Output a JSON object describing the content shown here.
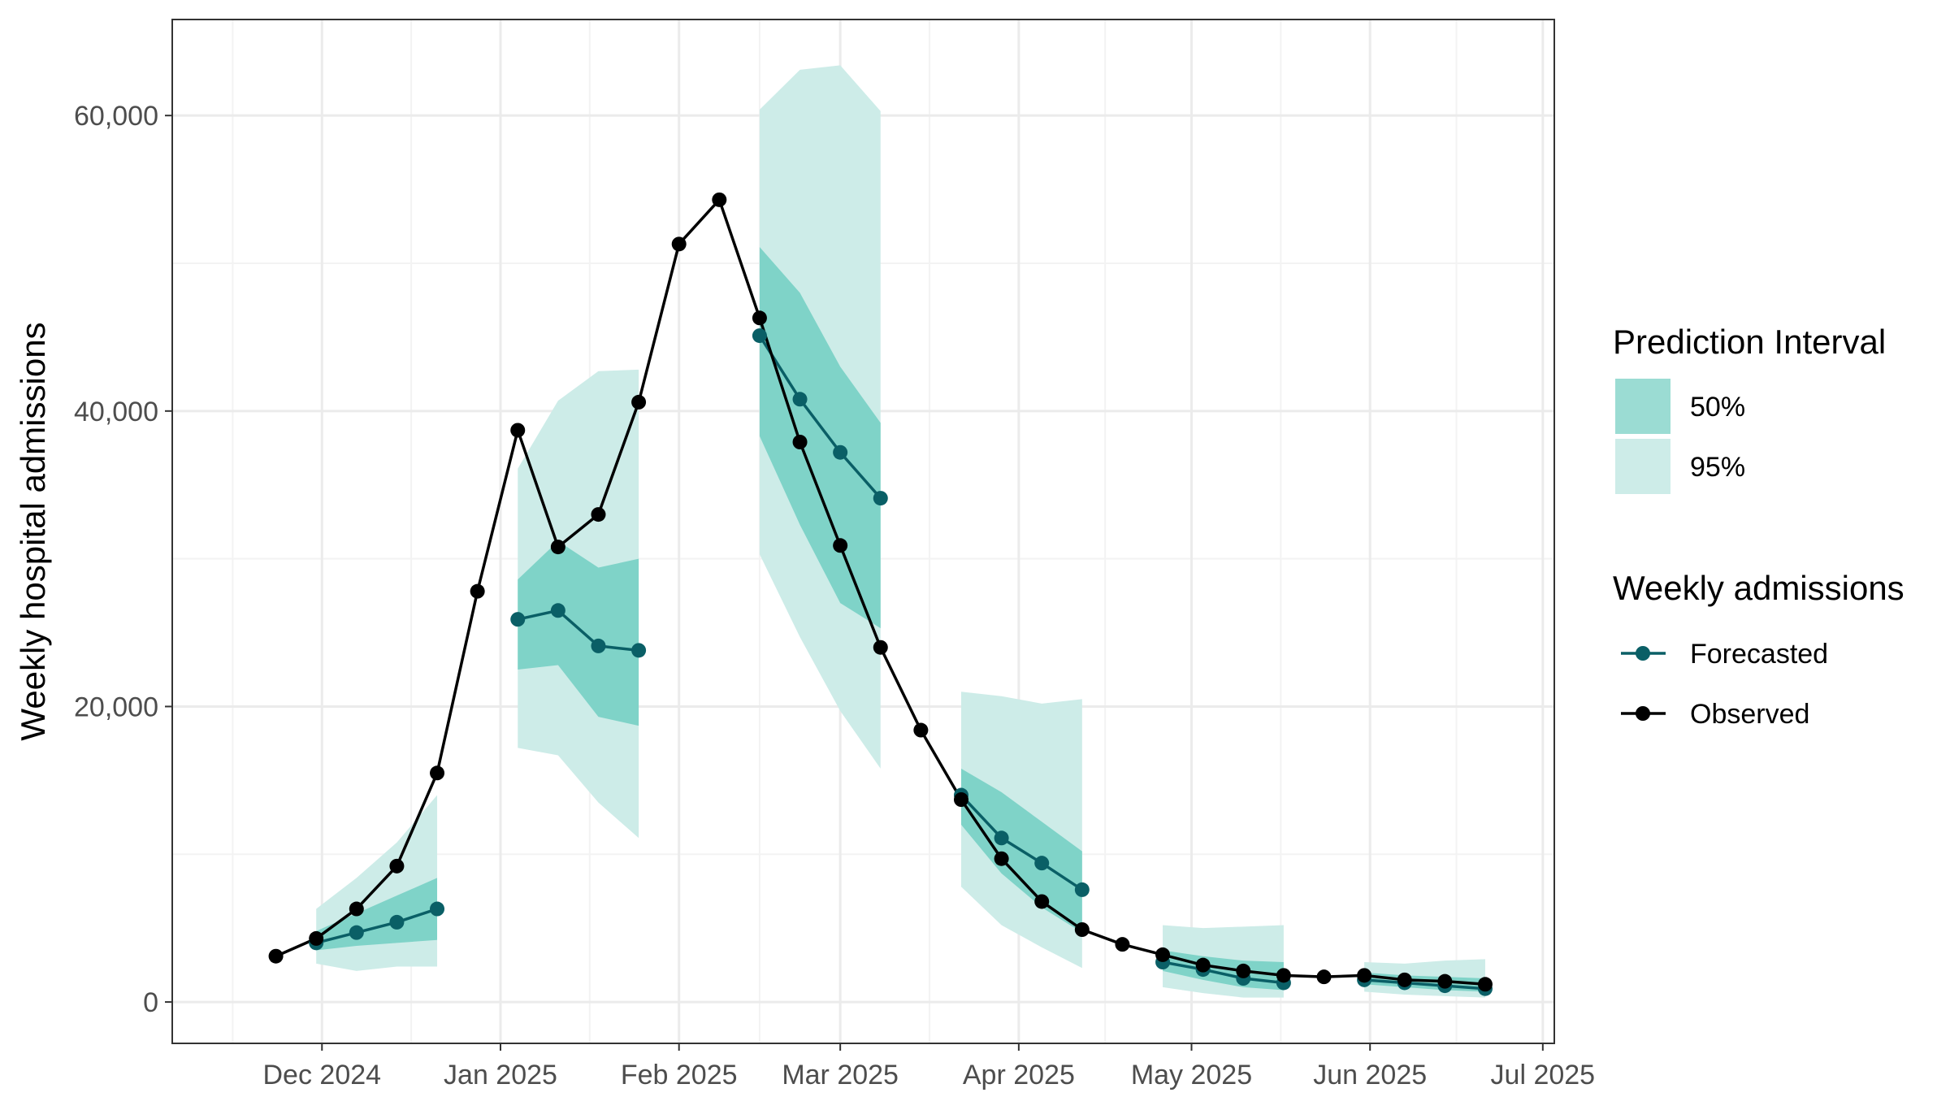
{
  "chart_data": {
    "type": "line",
    "title": "",
    "xlabel": "",
    "ylabel": "Weekly hospital admissions",
    "ylim": [
      -2800,
      66500
    ],
    "xlim": [
      "2024-11-05",
      "2025-07-03"
    ],
    "grid": true,
    "legend_position": "right",
    "y_ticks": [
      0,
      20000,
      40000,
      60000
    ],
    "y_tick_labels": [
      "0",
      "20,000",
      "40,000",
      "60,000"
    ],
    "x_ticks": [
      "2024-12-01",
      "2025-01-01",
      "2025-02-01",
      "2025-03-01",
      "2025-04-01",
      "2025-05-01",
      "2025-06-01",
      "2025-07-01"
    ],
    "x_tick_labels": [
      "Dec 2024",
      "Jan 2025",
      "Feb 2025",
      "Mar 2025",
      "Apr 2025",
      "May 2025",
      "Jun 2025",
      "Jul 2025"
    ],
    "colors": {
      "observed": "#000000",
      "forecast": "#0a5f66",
      "pi50": "#7fd3c8",
      "pi95": "#cdece8",
      "grid_major": "#ebebeb",
      "grid_minor": "#f3f3f3",
      "panel_border": "#333333"
    },
    "legend": {
      "interval_title": "Prediction Interval",
      "interval_items": [
        "50%",
        "95%"
      ],
      "series_title": "Weekly admissions",
      "series_items": [
        "Forecasted",
        "Observed"
      ]
    },
    "observed": {
      "name": "Observed",
      "x": [
        "2024-11-23",
        "2024-11-30",
        "2024-12-07",
        "2024-12-14",
        "2024-12-21",
        "2024-12-28",
        "2025-01-04",
        "2025-01-11",
        "2025-01-18",
        "2025-01-25",
        "2025-02-01",
        "2025-02-08",
        "2025-02-15",
        "2025-02-22",
        "2025-03-01",
        "2025-03-08",
        "2025-03-15",
        "2025-03-22",
        "2025-03-29",
        "2025-04-05",
        "2025-04-12",
        "2025-04-19",
        "2025-04-26",
        "2025-05-03",
        "2025-05-10",
        "2025-05-17",
        "2025-05-24",
        "2025-05-31",
        "2025-06-07",
        "2025-06-14",
        "2025-06-21"
      ],
      "y": [
        3100,
        4300,
        6300,
        9200,
        15500,
        27800,
        38700,
        30800,
        33000,
        40600,
        51300,
        54300,
        46300,
        37900,
        30900,
        24000,
        18400,
        13700,
        9700,
        6800,
        4900,
        3900,
        3200,
        2500,
        2100,
        1800,
        1700,
        1800,
        1500,
        1400,
        1200
      ]
    },
    "forecasts": [
      {
        "name": "Forecasted",
        "x": [
          "2024-11-30",
          "2024-12-07",
          "2024-12-14",
          "2024-12-21"
        ],
        "y": [
          4000,
          4700,
          5400,
          6300
        ],
        "lo50": [
          3500,
          3800,
          4000,
          4200
        ],
        "hi50": [
          4800,
          6000,
          7200,
          8400
        ],
        "lo95": [
          2600,
          2100,
          2400,
          2400
        ],
        "hi95": [
          6300,
          8400,
          10800,
          14000
        ]
      },
      {
        "name": "Forecasted",
        "x": [
          "2025-01-04",
          "2025-01-11",
          "2025-01-18",
          "2025-01-25"
        ],
        "y": [
          25900,
          26500,
          24100,
          23800
        ],
        "lo50": [
          22500,
          22800,
          19300,
          18700
        ],
        "hi50": [
          28600,
          31200,
          29400,
          30000
        ],
        "lo95": [
          17200,
          16700,
          13500,
          11100
        ],
        "hi95": [
          36100,
          40700,
          42700,
          42800
        ]
      },
      {
        "name": "Forecasted",
        "x": [
          "2025-02-15",
          "2025-02-22",
          "2025-03-01",
          "2025-03-08"
        ],
        "y": [
          45100,
          40800,
          37200,
          34100
        ],
        "lo50": [
          38300,
          32300,
          27000,
          25300
        ],
        "hi50": [
          51100,
          48000,
          43000,
          39200
        ],
        "lo95": [
          30300,
          24700,
          19700,
          15800
        ],
        "hi95": [
          60400,
          63100,
          63400,
          60300
        ]
      },
      {
        "name": "Forecasted",
        "x": [
          "2025-03-22",
          "2025-03-29",
          "2025-04-05",
          "2025-04-12"
        ],
        "y": [
          14000,
          11100,
          9400,
          7600
        ],
        "lo50": [
          12000,
          8700,
          6400,
          4700
        ],
        "hi50": [
          15800,
          14200,
          12200,
          10200
        ],
        "lo95": [
          7800,
          5200,
          3700,
          2300
        ],
        "hi95": [
          21000,
          20700,
          20200,
          20500
        ]
      },
      {
        "name": "Forecasted",
        "x": [
          "2025-04-26",
          "2025-05-03",
          "2025-05-10",
          "2025-05-17"
        ],
        "y": [
          2700,
          2200,
          1600,
          1300
        ],
        "lo50": [
          2100,
          1500,
          1000,
          800
        ],
        "hi50": [
          3500,
          3100,
          2800,
          2700
        ],
        "lo95": [
          1000,
          600,
          300,
          300
        ],
        "hi95": [
          5200,
          5000,
          5100,
          5200
        ]
      },
      {
        "name": "Forecasted",
        "x": [
          "2025-05-31",
          "2025-06-07",
          "2025-06-14",
          "2025-06-21"
        ],
        "y": [
          1500,
          1300,
          1100,
          900
        ],
        "lo50": [
          1200,
          1000,
          800,
          700
        ],
        "hi50": [
          2000,
          1800,
          1700,
          1600
        ],
        "lo95": [
          700,
          500,
          400,
          300
        ],
        "hi95": [
          2700,
          2600,
          2800,
          2900
        ]
      }
    ]
  }
}
